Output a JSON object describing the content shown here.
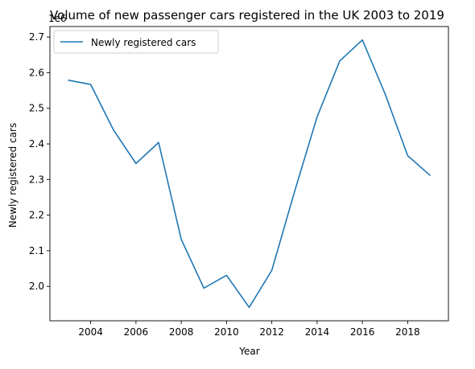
{
  "chart_data": {
    "type": "line",
    "title": "Volume of new passenger cars registered in the UK 2003 to 2019",
    "xlabel": "Year",
    "ylabel": "Newly registered cars",
    "y_offset_label": "1e6",
    "x": [
      2003,
      2004,
      2005,
      2006,
      2007,
      2008,
      2009,
      2010,
      2011,
      2012,
      2013,
      2014,
      2015,
      2016,
      2017,
      2018,
      2019
    ],
    "series": [
      {
        "name": "Newly registered cars",
        "color": "#1f77b4",
        "values": [
          2.579,
          2.567,
          2.44,
          2.345,
          2.404,
          2.132,
          1.995,
          2.031,
          1.941,
          2.045,
          2.265,
          2.476,
          2.633,
          2.692,
          2.541,
          2.367,
          2.311
        ]
      }
    ],
    "xlim": [
      2002.2,
      2019.8
    ],
    "ylim": [
      1.9034,
      2.7296
    ],
    "x_ticks": [
      2004,
      2006,
      2008,
      2010,
      2012,
      2014,
      2016,
      2018
    ],
    "y_ticks": [
      2.0,
      2.1,
      2.2,
      2.3,
      2.4,
      2.5,
      2.6,
      2.7
    ],
    "y_tick_labels": [
      "2.0",
      "2.1",
      "2.2",
      "2.3",
      "2.4",
      "2.5",
      "2.6",
      "2.7"
    ],
    "grid": false,
    "legend": "upper-left"
  }
}
